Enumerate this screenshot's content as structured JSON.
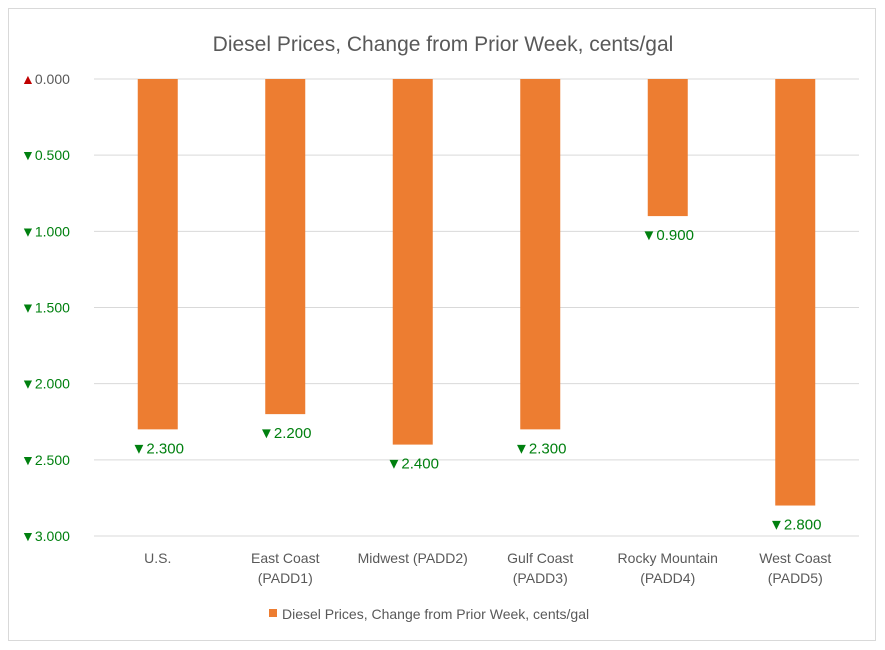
{
  "chart_data": {
    "type": "bar",
    "title": "Diesel Prices, Change from Prior Week, cents/gal",
    "categories": [
      [
        "U.S."
      ],
      [
        "East Coast",
        "(PADD1)"
      ],
      [
        "Midwest (PADD2)"
      ],
      [
        "Gulf Coast",
        "(PADD3)"
      ],
      [
        "Rocky Mountain",
        "(PADD4)"
      ],
      [
        "West Coast",
        "(PADD5)"
      ]
    ],
    "series": [
      {
        "name": "Diesel Prices, Change from Prior Week, cents/gal",
        "values": [
          -2.3,
          -2.2,
          -2.4,
          -2.3,
          -0.9,
          -2.8
        ],
        "color": "#ED7D31"
      }
    ],
    "data_labels": [
      "▼2.300",
      "▼2.200",
      "▼2.400",
      "▼2.300",
      "▼0.900",
      "▼2.800"
    ],
    "ylim": [
      -3.0,
      0.0
    ],
    "y_ticks": [
      0,
      -0.5,
      -1.0,
      -1.5,
      -2.0,
      -2.5,
      -3.0
    ],
    "y_tick_labels": [
      "▲0.000",
      "▼0.500",
      "▼1.000",
      "▼1.500",
      "▼2.000",
      "▼2.500",
      "▼3.000"
    ],
    "grid": true,
    "legend_position": "bottom",
    "xlabel": "",
    "ylabel": "",
    "colors": {
      "up": "#C00000",
      "down": "#00800F",
      "gridline": "#D9D9D9",
      "text": "#595959"
    }
  }
}
